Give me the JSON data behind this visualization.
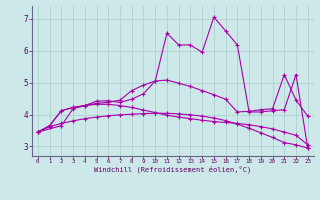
{
  "xlabel": "Windchill (Refroidissement éolien,°C)",
  "x_ticks": [
    0,
    1,
    2,
    3,
    4,
    5,
    6,
    7,
    8,
    9,
    10,
    11,
    12,
    13,
    14,
    15,
    16,
    17,
    18,
    19,
    20,
    21,
    22,
    23
  ],
  "y_ticks": [
    3,
    4,
    5,
    6,
    7
  ],
  "xlim": [
    -0.5,
    23.5
  ],
  "ylim": [
    2.7,
    7.4
  ],
  "background_color": "#cce8e8",
  "grid_color": "#aacccc",
  "line_color": "#aa00aa",
  "lines": [
    {
      "x": [
        0,
        1,
        2,
        3,
        4,
        5,
        6,
        7,
        8,
        9,
        10,
        11,
        12,
        13,
        14,
        15,
        16,
        17,
        18,
        19,
        20,
        21,
        22,
        23
      ],
      "y": [
        3.45,
        3.62,
        3.72,
        3.8,
        3.87,
        3.92,
        3.96,
        3.99,
        4.01,
        4.03,
        4.04,
        4.04,
        4.02,
        3.99,
        3.95,
        3.89,
        3.81,
        3.7,
        3.57,
        3.43,
        3.28,
        3.12,
        3.05,
        2.95
      ]
    },
    {
      "x": [
        0,
        1,
        2,
        3,
        4,
        5,
        6,
        7,
        8,
        9,
        10,
        11,
        12,
        13,
        14,
        15,
        16,
        17,
        18,
        19,
        20,
        21,
        22,
        23
      ],
      "y": [
        3.45,
        3.65,
        4.12,
        4.22,
        4.28,
        4.32,
        4.32,
        4.28,
        4.22,
        4.14,
        4.06,
        3.98,
        3.92,
        3.87,
        3.82,
        3.78,
        3.75,
        3.72,
        3.68,
        3.62,
        3.55,
        3.45,
        3.35,
        3.05
      ]
    },
    {
      "x": [
        0,
        1,
        2,
        3,
        4,
        5,
        6,
        7,
        8,
        9,
        10,
        11,
        12,
        13,
        14,
        15,
        16,
        17,
        18,
        19,
        20,
        21,
        22,
        23
      ],
      "y": [
        3.45,
        3.65,
        4.12,
        4.22,
        4.28,
        4.35,
        4.38,
        4.45,
        4.75,
        4.92,
        5.05,
        5.08,
        4.98,
        4.88,
        4.75,
        4.62,
        4.48,
        4.08,
        4.1,
        4.15,
        4.18,
        5.25,
        4.45,
        3.95
      ]
    },
    {
      "x": [
        0,
        2,
        3,
        4,
        5,
        6,
        7,
        8,
        9,
        10,
        11,
        12,
        13,
        14,
        15,
        16,
        17,
        18,
        19,
        20,
        21,
        22,
        23
      ],
      "y": [
        3.45,
        3.65,
        4.18,
        4.28,
        4.42,
        4.43,
        4.38,
        4.48,
        4.65,
        5.05,
        6.55,
        6.18,
        6.18,
        5.95,
        7.05,
        6.62,
        6.18,
        4.08,
        4.08,
        4.12,
        4.15,
        5.25,
        2.95
      ]
    }
  ]
}
